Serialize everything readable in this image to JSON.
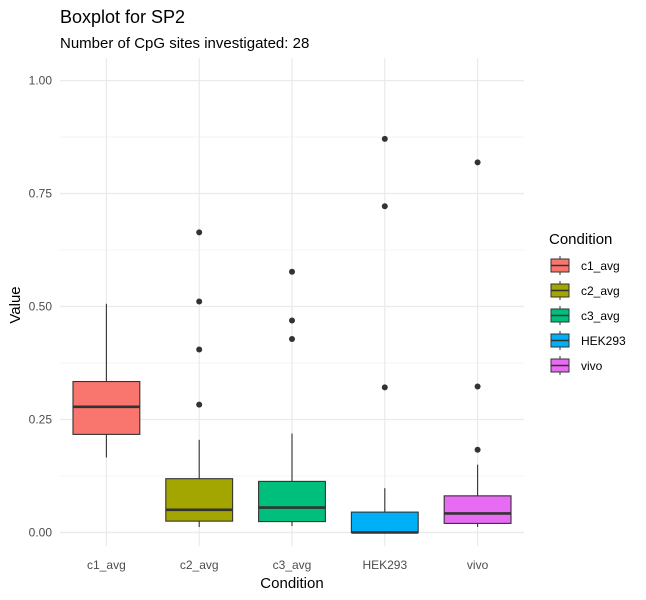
{
  "chart_data": {
    "type": "boxplot",
    "title": "Boxplot for SP2",
    "subtitle": "Number of CpG sites investigated: 28",
    "xlabel": "Condition",
    "ylabel": "Value",
    "ylim": [
      -0.03,
      1.05
    ],
    "y_ticks": [
      0.0,
      0.25,
      0.5,
      0.75,
      1.0
    ],
    "y_tick_labels": [
      "0.00",
      "0.25",
      "0.50",
      "0.75",
      "1.00"
    ],
    "grid": true,
    "legend_position": "right",
    "legend_title": "Condition",
    "categories": [
      "c1_avg",
      "c2_avg",
      "c3_avg",
      "HEK293",
      "vivo"
    ],
    "series": [
      {
        "name": "c1_avg",
        "color": "#F8766D",
        "whisker_low": 0.166,
        "q1": 0.217,
        "median": 0.278,
        "q3": 0.334,
        "whisker_high": 0.506,
        "outliers": []
      },
      {
        "name": "c2_avg",
        "color": "#A3A500",
        "whisker_low": 0.012,
        "q1": 0.025,
        "median": 0.05,
        "q3": 0.119,
        "whisker_high": 0.205,
        "outliers": [
          0.283,
          0.405,
          0.511,
          0.664
        ]
      },
      {
        "name": "c3_avg",
        "color": "#00BF7D",
        "whisker_low": 0.014,
        "q1": 0.024,
        "median": 0.055,
        "q3": 0.113,
        "whisker_high": 0.219,
        "outliers": [
          0.428,
          0.469,
          0.577
        ]
      },
      {
        "name": "HEK293",
        "color": "#00B0F6",
        "whisker_low": 0.0,
        "q1": 0.0,
        "median": 0.0,
        "q3": 0.045,
        "whisker_high": 0.098,
        "outliers": [
          0.321,
          0.722,
          0.871
        ]
      },
      {
        "name": "vivo",
        "color": "#E76BF3",
        "whisker_low": 0.012,
        "q1": 0.02,
        "median": 0.042,
        "q3": 0.081,
        "whisker_high": 0.15,
        "outliers": [
          0.183,
          0.323,
          0.819
        ]
      }
    ]
  }
}
